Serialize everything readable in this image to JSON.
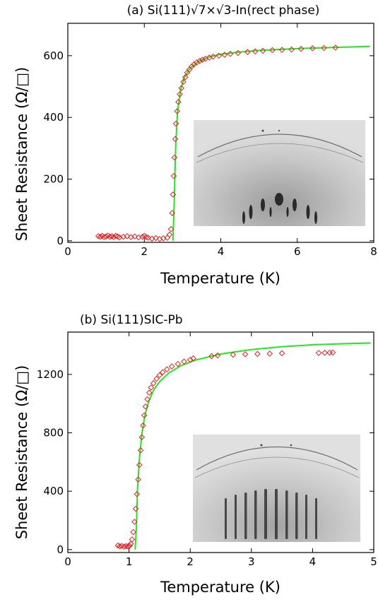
{
  "chart_data": [
    {
      "type": "scatter",
      "title": "(a) Si(111)√7×√3-In(rect phase)",
      "xlabel": "Temperature (K)",
      "ylabel": "Sheet Resistance (Ω/□)",
      "xlim": [
        0,
        8
      ],
      "ylim": [
        -5,
        705
      ],
      "xticks": [
        0,
        2,
        4,
        6,
        8
      ],
      "yticks": [
        0,
        200,
        400,
        600
      ],
      "inset": "diffraction-image",
      "series": [
        {
          "marker": "diamond",
          "color": "#e8201e",
          "points": [
            [
              0.8,
              15
            ],
            [
              0.85,
              13
            ],
            [
              0.9,
              16
            ],
            [
              0.95,
              12
            ],
            [
              1.0,
              14
            ],
            [
              1.05,
              17
            ],
            [
              1.1,
              13
            ],
            [
              1.15,
              15
            ],
            [
              1.2,
              12
            ],
            [
              1.25,
              16
            ],
            [
              1.3,
              14
            ],
            [
              1.35,
              11
            ],
            [
              1.45,
              13
            ],
            [
              1.55,
              15
            ],
            [
              1.65,
              12
            ],
            [
              1.75,
              14
            ],
            [
              1.85,
              11
            ],
            [
              1.95,
              13
            ],
            [
              2.0,
              16
            ],
            [
              2.05,
              12
            ],
            [
              2.1,
              10
            ],
            [
              2.2,
              7
            ],
            [
              2.3,
              9
            ],
            [
              2.4,
              6
            ],
            [
              2.5,
              8
            ],
            [
              2.6,
              10
            ],
            [
              2.66,
              20
            ],
            [
              2.7,
              38
            ],
            [
              2.73,
              90
            ],
            [
              2.75,
              150
            ],
            [
              2.77,
              210
            ],
            [
              2.79,
              270
            ],
            [
              2.81,
              330
            ],
            [
              2.83,
              380
            ],
            [
              2.86,
              420
            ],
            [
              2.89,
              450
            ],
            [
              2.93,
              475
            ],
            [
              2.97,
              495
            ],
            [
              3.02,
              515
            ],
            [
              3.07,
              530
            ],
            [
              3.12,
              545
            ],
            [
              3.18,
              555
            ],
            [
              3.24,
              565
            ],
            [
              3.3,
              572
            ],
            [
              3.37,
              578
            ],
            [
              3.45,
              583
            ],
            [
              3.52,
              587
            ],
            [
              3.6,
              590
            ],
            [
              3.7,
              594
            ],
            [
              3.8,
              597
            ],
            [
              3.95,
              600
            ],
            [
              4.1,
              603
            ],
            [
              4.25,
              606
            ],
            [
              4.45,
              609
            ],
            [
              4.7,
              612
            ],
            [
              4.9,
              614
            ],
            [
              5.1,
              616
            ],
            [
              5.35,
              618
            ],
            [
              5.6,
              619
            ],
            [
              5.85,
              620
            ],
            [
              6.1,
              622
            ],
            [
              6.4,
              624
            ],
            [
              6.7,
              625
            ],
            [
              7.0,
              626
            ]
          ]
        },
        {
          "marker": "line",
          "color": "#22e622",
          "points": [
            [
              2.75,
              0
            ],
            [
              2.78,
              120
            ],
            [
              2.82,
              300
            ],
            [
              2.87,
              420
            ],
            [
              2.95,
              490
            ],
            [
              3.05,
              530
            ],
            [
              3.2,
              560
            ],
            [
              3.4,
              580
            ],
            [
              3.7,
              596
            ],
            [
              4.0,
              605
            ],
            [
              4.5,
              612
            ],
            [
              5.0,
              617
            ],
            [
              6.0,
              623
            ],
            [
              7.0,
              627
            ],
            [
              7.9,
              630
            ]
          ]
        }
      ]
    },
    {
      "type": "scatter",
      "title": "(b) Si(111)SIC-Pb",
      "xlabel": "Temperature (K)",
      "ylabel": "Sheet Resistance (Ω/□)",
      "xlim": [
        0,
        5
      ],
      "ylim": [
        -20,
        1490
      ],
      "xticks": [
        0,
        1,
        2,
        3,
        4,
        5
      ],
      "yticks": [
        0,
        400,
        800,
        1200
      ],
      "inset": "diffraction-image",
      "series": [
        {
          "marker": "diamond",
          "color": "#e8201e",
          "points": [
            [
              0.82,
              28
            ],
            [
              0.85,
              22
            ],
            [
              0.88,
              25
            ],
            [
              0.92,
              20
            ],
            [
              0.95,
              24
            ],
            [
              0.98,
              22
            ],
            [
              1.01,
              26
            ],
            [
              1.03,
              40
            ],
            [
              1.05,
              70
            ],
            [
              1.07,
              120
            ],
            [
              1.09,
              190
            ],
            [
              1.11,
              280
            ],
            [
              1.13,
              380
            ],
            [
              1.15,
              480
            ],
            [
              1.17,
              580
            ],
            [
              1.19,
              680
            ],
            [
              1.21,
              770
            ],
            [
              1.23,
              850
            ],
            [
              1.25,
              920
            ],
            [
              1.27,
              980
            ],
            [
              1.3,
              1030
            ],
            [
              1.33,
              1075
            ],
            [
              1.36,
              1110
            ],
            [
              1.4,
              1140
            ],
            [
              1.45,
              1170
            ],
            [
              1.5,
              1195
            ],
            [
              1.55,
              1215
            ],
            [
              1.62,
              1235
            ],
            [
              1.7,
              1255
            ],
            [
              1.8,
              1272
            ],
            [
              1.9,
              1288
            ],
            [
              2.0,
              1300
            ],
            [
              2.05,
              1310
            ],
            [
              2.35,
              1325
            ],
            [
              2.45,
              1330
            ],
            [
              2.7,
              1335
            ],
            [
              2.9,
              1338
            ],
            [
              3.1,
              1340
            ],
            [
              3.3,
              1342
            ],
            [
              3.5,
              1345
            ],
            [
              4.1,
              1347
            ],
            [
              4.2,
              1348
            ],
            [
              4.28,
              1349
            ],
            [
              4.33,
              1350
            ]
          ]
        },
        {
          "marker": "line",
          "color": "#22e622",
          "points": [
            [
              1.1,
              0
            ],
            [
              1.12,
              150
            ],
            [
              1.14,
              420
            ],
            [
              1.17,
              620
            ],
            [
              1.21,
              790
            ],
            [
              1.26,
              920
            ],
            [
              1.32,
              1010
            ],
            [
              1.4,
              1090
            ],
            [
              1.5,
              1150
            ],
            [
              1.65,
              1210
            ],
            [
              1.85,
              1260
            ],
            [
              2.1,
              1300
            ],
            [
              2.5,
              1340
            ],
            [
              3.0,
              1370
            ],
            [
              3.5,
              1390
            ],
            [
              4.0,
              1403
            ],
            [
              4.5,
              1410
            ],
            [
              4.95,
              1415
            ]
          ]
        }
      ]
    }
  ]
}
